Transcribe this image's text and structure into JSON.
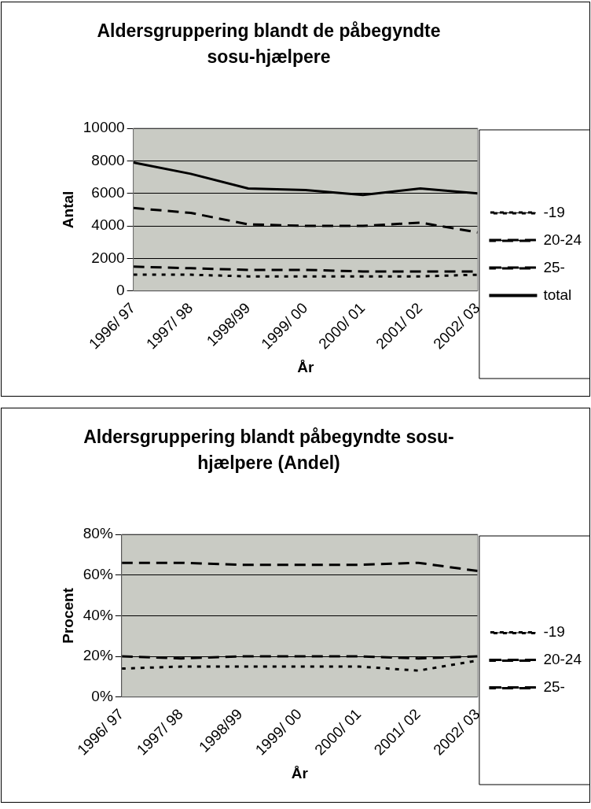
{
  "chart_data": [
    {
      "type": "line",
      "title": "Aldersgruppering blandt de påbegyndte sosu-hjælpere",
      "xlabel": "År",
      "ylabel": "Antal",
      "categories": [
        "1996/ 97",
        "1997/ 98",
        "1998/99",
        "1999/ 00",
        "2000/ 01",
        "2001/ 02",
        "2002/ 03"
      ],
      "series": [
        {
          "name": "-19",
          "color": "#000000",
          "line_style": "dotted",
          "values": [
            1000,
            1000,
            900,
            900,
            900,
            900,
            1000
          ]
        },
        {
          "name": "20-24",
          "color": "#000000",
          "line_style": "dashed",
          "values": [
            1500,
            1400,
            1300,
            1300,
            1200,
            1200,
            1200
          ]
        },
        {
          "name": "25-",
          "color": "#000000",
          "line_style": "dashed",
          "values": [
            5100,
            4800,
            4100,
            4000,
            4000,
            4200,
            3600
          ]
        },
        {
          "name": "total",
          "color": "#000000",
          "line_style": "solid",
          "values": [
            7900,
            7200,
            6300,
            6200,
            5900,
            6300,
            6000
          ]
        }
      ],
      "ylim": [
        0,
        10000
      ],
      "yticks": [
        0,
        2000,
        4000,
        6000,
        8000,
        10000
      ],
      "grid": "y",
      "legend": "right",
      "marker": "none"
    },
    {
      "type": "line",
      "title": "Aldersgruppering blandt påbegyndte sosu-hjælpere (Andel)",
      "xlabel": "År",
      "ylabel": "Procent",
      "categories": [
        "1996/ 97",
        "1997/ 98",
        "1998/99",
        "1999/ 00",
        "2000/ 01",
        "2001/ 02",
        "2002/ 03"
      ],
      "series": [
        {
          "name": "-19",
          "color": "#000000",
          "line_style": "dotted",
          "values": [
            14,
            15,
            15,
            15,
            15,
            13,
            18
          ]
        },
        {
          "name": "20-24",
          "color": "#000000",
          "line_style": "dashed",
          "values": [
            20,
            19,
            20,
            20,
            20,
            19,
            20
          ]
        },
        {
          "name": "25-",
          "color": "#000000",
          "line_style": "dashed",
          "values": [
            66,
            66,
            65,
            65,
            65,
            66,
            62
          ]
        }
      ],
      "ylim": [
        0,
        80
      ],
      "yticks": [
        {
          "value": 0,
          "label": "0%"
        },
        {
          "value": 20,
          "label": "20%"
        },
        {
          "value": 40,
          "label": "40%"
        },
        {
          "value": 60,
          "label": "60%"
        },
        {
          "value": 80,
          "label": "80%"
        }
      ],
      "grid": "y",
      "legend": "right",
      "marker": "none"
    }
  ]
}
